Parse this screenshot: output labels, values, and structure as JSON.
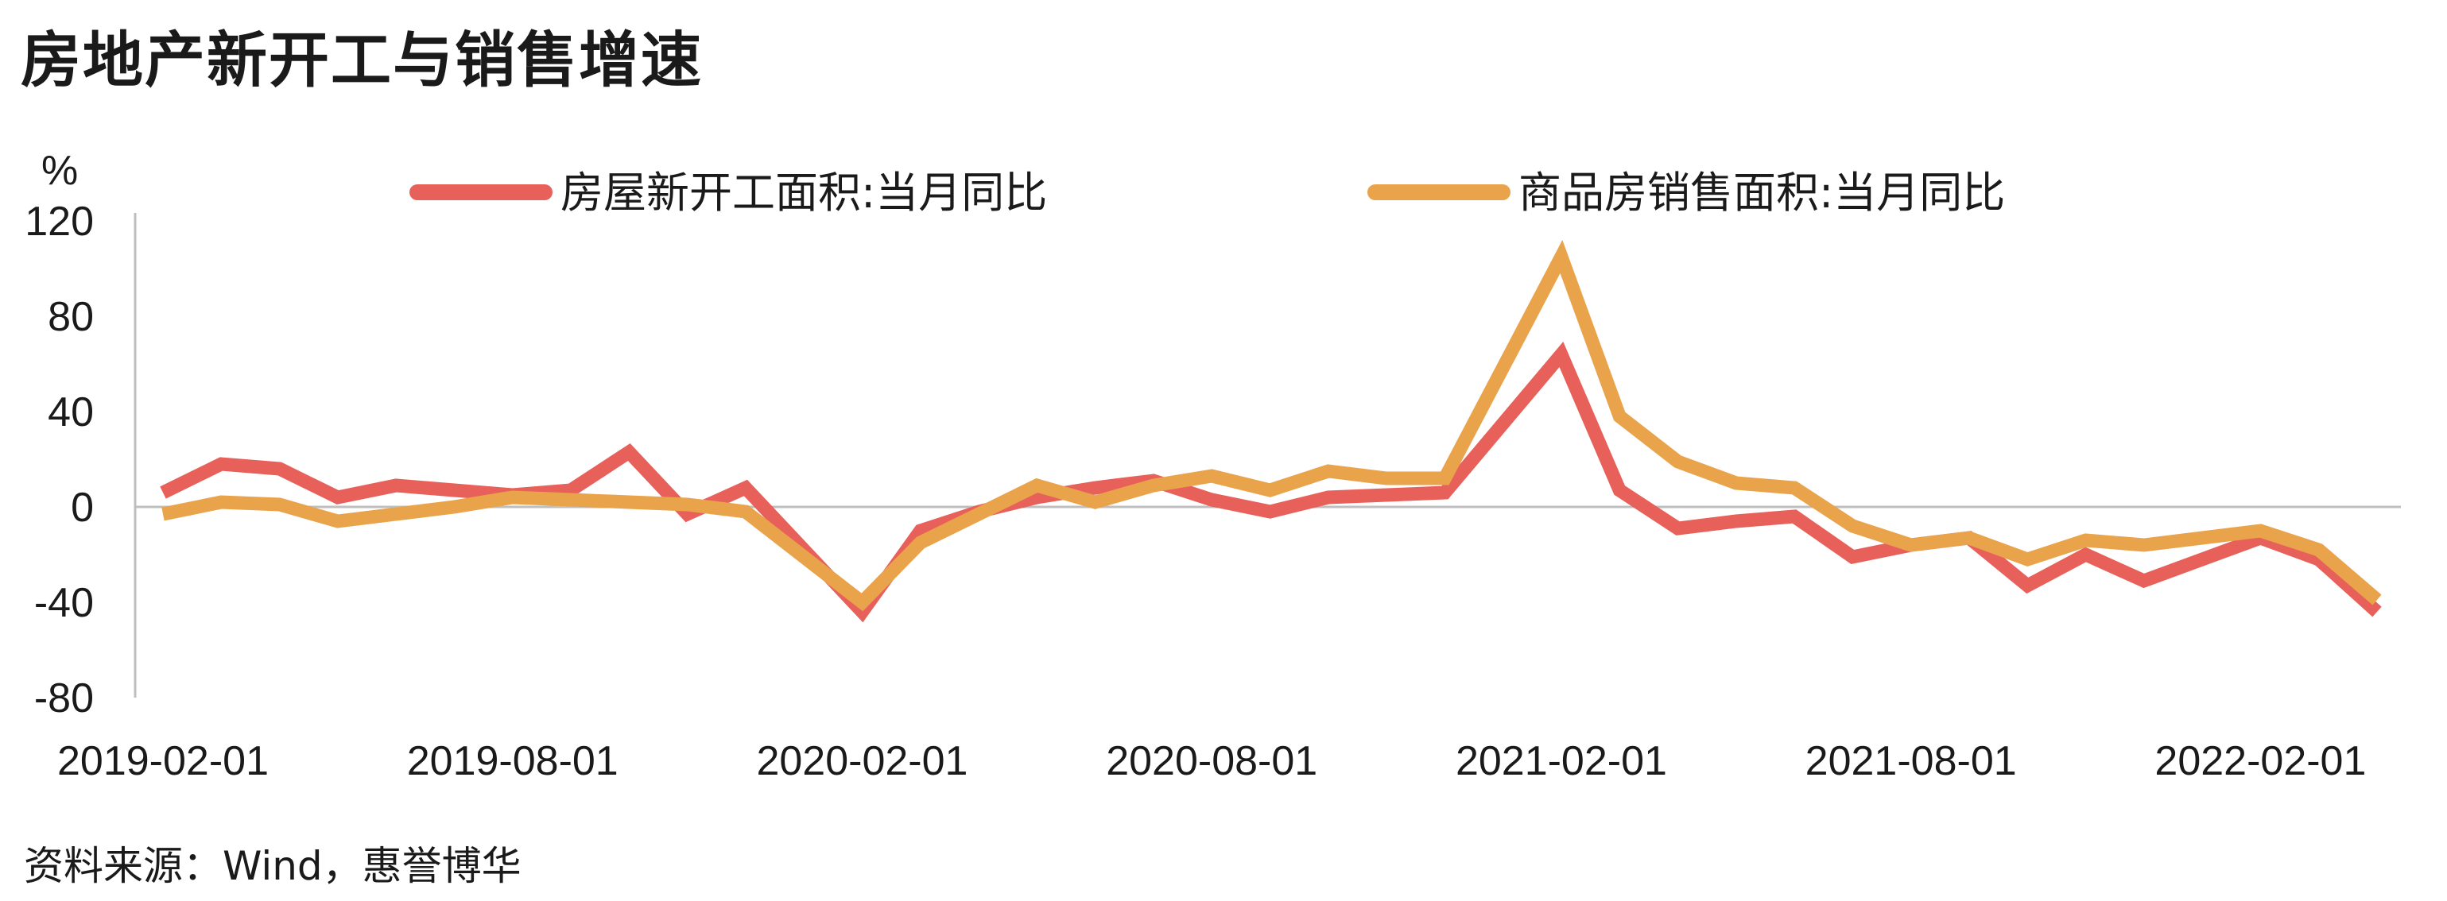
{
  "title": "房地产新开工与销售增速",
  "source": "资料来源：Wind，惠誉博华",
  "chart_data": {
    "type": "line",
    "ylabel": "%",
    "ylim": [
      -80,
      120
    ],
    "yticks": [
      120,
      80,
      40,
      0,
      -40,
      -80
    ],
    "xlabels": [
      "2019-02-01",
      "2019-08-01",
      "2020-02-01",
      "2020-08-01",
      "2021-02-01",
      "2021-08-01",
      "2022-02-01"
    ],
    "x": [
      "2019-02",
      "2019-03",
      "2019-04",
      "2019-05",
      "2019-06",
      "2019-07",
      "2019-08",
      "2019-09",
      "2019-10",
      "2019-11",
      "2019-12",
      "2020-01",
      "2020-02",
      "2020-03",
      "2020-04",
      "2020-05",
      "2020-06",
      "2020-07",
      "2020-08",
      "2020-09",
      "2020-10",
      "2020-11",
      "2020-12",
      "2021-01",
      "2021-02",
      "2021-03",
      "2021-04",
      "2021-05",
      "2021-06",
      "2021-07",
      "2021-08",
      "2021-09",
      "2021-10",
      "2021-11",
      "2021-12",
      "2022-01",
      "2022-02",
      "2022-03",
      "2022-04"
    ],
    "series": [
      {
        "name": "房屋新开工面积:当月同比",
        "color": "#E8605A",
        "values": [
          6,
          18,
          16,
          4,
          9,
          7,
          5,
          7,
          23,
          -3,
          8,
          null,
          -44,
          -10,
          -2,
          4,
          8,
          11,
          3,
          -2,
          4,
          5,
          6,
          null,
          64,
          7,
          -9,
          -6,
          -4,
          -21,
          -16,
          -13,
          -33,
          -20,
          -31,
          null,
          -13,
          -22,
          -44
        ]
      },
      {
        "name": "商品房销售面积:当月同比",
        "color": "#E9A34B",
        "values": [
          -3,
          2,
          1,
          -6,
          -3,
          0,
          4,
          3,
          2,
          1,
          -2,
          null,
          -40,
          -15,
          -3,
          9,
          2,
          9,
          13,
          7,
          15,
          12,
          12,
          null,
          105,
          38,
          19,
          10,
          8,
          -8,
          -16,
          -13,
          -22,
          -14,
          -16,
          null,
          -10,
          -18,
          -39
        ]
      }
    ]
  }
}
